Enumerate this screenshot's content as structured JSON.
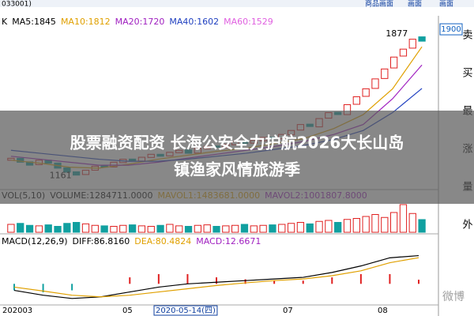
{
  "header": {
    "code": "033001)",
    "tabs": [
      "商品画面",
      "画面",
      "画面"
    ]
  },
  "headline": [
    "股票融资配资 长海公安全力护航2026大长山岛",
    "镇渔家风情旅游季"
  ],
  "sidebar": [
    "卖",
    "买",
    "最",
    "涨",
    "量",
    "外"
  ],
  "watermark": "微博",
  "chart_data": [
    {
      "type": "candlestick",
      "legend": [
        {
          "label": "K",
          "color": "#000000"
        },
        {
          "label": "MA5:1845",
          "color": "#000000"
        },
        {
          "label": "MA10:1812",
          "color": "#e0a000"
        },
        {
          "label": "MA20:1720",
          "color": "#a020c0"
        },
        {
          "label": "MA40:1602",
          "color": "#2040c0"
        },
        {
          "label": "MA60:1529",
          "color": "#e060e0"
        }
      ],
      "opens": [
        1240,
        1250,
        1232,
        1218,
        1240,
        1226,
        1202,
        1182,
        1168,
        1190,
        1212,
        1206,
        1228,
        1246,
        1236,
        1254,
        1270,
        1262,
        1278,
        1292,
        1276,
        1298,
        1312,
        1303,
        1318,
        1336,
        1326,
        1338,
        1356,
        1348,
        1368,
        1392,
        1422,
        1408,
        1452,
        1482,
        1470,
        1522,
        1562,
        1602,
        1652,
        1705,
        1765,
        1805,
        1862
      ],
      "closes": [
        1250,
        1230,
        1215,
        1240,
        1225,
        1200,
        1180,
        1165,
        1190,
        1210,
        1205,
        1230,
        1245,
        1235,
        1255,
        1270,
        1260,
        1280,
        1290,
        1275,
        1300,
        1310,
        1305,
        1320,
        1335,
        1325,
        1340,
        1355,
        1350,
        1370,
        1390,
        1420,
        1410,
        1450,
        1480,
        1470,
        1520,
        1560,
        1600,
        1650,
        1700,
        1760,
        1800,
        1850,
        1840
      ],
      "series": [
        {
          "name": "MA10",
          "color": "#e0a000",
          "values": [
            1240,
            1225,
            1205,
            1200,
            1220,
            1245,
            1265,
            1285,
            1300,
            1325,
            1350,
            1400,
            1470,
            1600,
            1812
          ]
        },
        {
          "name": "MA20",
          "color": "#a020c0",
          "values": [
            1260,
            1245,
            1230,
            1215,
            1215,
            1230,
            1250,
            1270,
            1290,
            1310,
            1335,
            1370,
            1420,
            1550,
            1720
          ]
        },
        {
          "name": "MA40",
          "color": "#2040c0",
          "values": [
            1290,
            1275,
            1260,
            1245,
            1235,
            1235,
            1245,
            1260,
            1275,
            1295,
            1315,
            1345,
            1390,
            1480,
            1602
          ]
        }
      ],
      "annotations": [
        {
          "text": "1877",
          "value": 1877
        },
        {
          "text": "1161",
          "value": 1161
        }
      ],
      "ylim": [
        1100,
        1960
      ],
      "yticks": [
        1900
      ]
    },
    {
      "type": "volume",
      "legend": [
        {
          "label": "VOL(5,10)",
          "color": "#000000"
        },
        {
          "label": "VOLUME:1284711.0000",
          "color": "#000000"
        },
        {
          "label": "MAVOL1:1483681.0000",
          "color": "#e0a000"
        },
        {
          "label": "MAVOL2:1001807.8000",
          "color": "#a020c0"
        }
      ],
      "values": [
        800000,
        900000,
        700000,
        650000,
        750000,
        600000,
        900000,
        1000000,
        850000,
        700000,
        650000,
        600000,
        700000,
        750000,
        650000,
        600000,
        700000,
        800000,
        650000,
        600000,
        700000,
        750000,
        600000,
        650000,
        700000,
        800000,
        650000,
        700000,
        750000,
        800000,
        900000,
        1000000,
        850000,
        1100000,
        1200000,
        1000000,
        1300000,
        1400000,
        1600000,
        1800000,
        1500000,
        2000000,
        2800000,
        1900000,
        1284711
      ],
      "ylim": [
        0,
        3200000
      ]
    },
    {
      "type": "macd",
      "legend": [
        {
          "label": "MACD(12,26,9)",
          "color": "#000000"
        },
        {
          "label": "DIFF:86.8160",
          "color": "#000000"
        },
        {
          "label": "DEA:80.4824",
          "color": "#e0a000"
        },
        {
          "label": "MACD:12.6671",
          "color": "#a020c0"
        }
      ],
      "series": [
        {
          "name": "DIFF",
          "color": "#000000",
          "values": [
            -20,
            -35,
            -45,
            -40,
            -25,
            -10,
            0,
            5,
            10,
            15,
            20,
            35,
            55,
            80,
            86.816
          ]
        },
        {
          "name": "DEA",
          "color": "#e0a000",
          "values": [
            -10,
            -22,
            -35,
            -40,
            -35,
            -25,
            -15,
            -5,
            3,
            10,
            15,
            25,
            40,
            65,
            80.4824
          ]
        }
      ],
      "values": [
        -20,
        -26,
        -20,
        0,
        20,
        30,
        30,
        20,
        14,
        10,
        10,
        20,
        30,
        30,
        12.6671
      ],
      "ylim": [
        -60,
        110
      ],
      "x_labels": [
        "202003",
        "05",
        "2020-05-14(四)",
        "07",
        "08"
      ]
    }
  ]
}
